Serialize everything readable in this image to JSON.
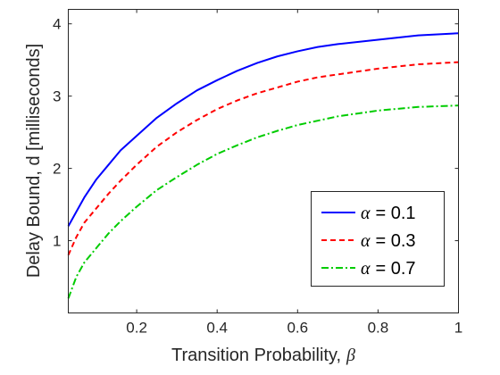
{
  "chart_data": {
    "type": "line",
    "xlabel": "Transition Probability,",
    "xlabel_symbol": "β",
    "ylabel": "Delay Bound, d [milliseconds]",
    "xlim": [
      0.03,
      1.0
    ],
    "ylim": [
      0.0,
      4.2
    ],
    "x_ticks": [
      0.2,
      0.4,
      0.6,
      0.8,
      1
    ],
    "x_tick_labels": [
      "0.2",
      "0.4",
      "0.6",
      "0.8",
      "1"
    ],
    "y_ticks": [
      1,
      2,
      3,
      4
    ],
    "y_tick_labels": [
      "1",
      "2",
      "3",
      "4"
    ],
    "grid": false,
    "legend_position": "lower-right",
    "series": [
      {
        "name": "α = 0.1",
        "symbol": "α",
        "label_rest": "= 0.1",
        "color": "#0000ff",
        "style": "solid",
        "x": [
          0.03,
          0.05,
          0.07,
          0.1,
          0.13,
          0.16,
          0.2,
          0.25,
          0.3,
          0.35,
          0.4,
          0.45,
          0.5,
          0.55,
          0.6,
          0.65,
          0.7,
          0.8,
          0.9,
          1.0
        ],
        "y": [
          1.2,
          1.4,
          1.6,
          1.85,
          2.05,
          2.25,
          2.45,
          2.7,
          2.9,
          3.08,
          3.22,
          3.35,
          3.46,
          3.55,
          3.62,
          3.68,
          3.72,
          3.78,
          3.84,
          3.87
        ]
      },
      {
        "name": "α = 0.3",
        "symbol": "α",
        "label_rest": "= 0.3",
        "color": "#ff0000",
        "style": "dashed",
        "x": [
          0.03,
          0.05,
          0.07,
          0.1,
          0.13,
          0.16,
          0.2,
          0.25,
          0.3,
          0.35,
          0.4,
          0.45,
          0.5,
          0.55,
          0.6,
          0.65,
          0.7,
          0.8,
          0.9,
          1.0
        ],
        "y": [
          0.8,
          1.05,
          1.25,
          1.45,
          1.65,
          1.83,
          2.05,
          2.3,
          2.5,
          2.67,
          2.82,
          2.94,
          3.04,
          3.12,
          3.2,
          3.26,
          3.3,
          3.38,
          3.44,
          3.47
        ]
      },
      {
        "name": "α = 0.7",
        "symbol": "α",
        "label_rest": "= 0.7",
        "color": "#00cc00",
        "style": "dashdot",
        "x": [
          0.03,
          0.05,
          0.07,
          0.1,
          0.13,
          0.16,
          0.2,
          0.25,
          0.3,
          0.35,
          0.4,
          0.45,
          0.5,
          0.55,
          0.6,
          0.65,
          0.7,
          0.8,
          0.9,
          1.0
        ],
        "y": [
          0.2,
          0.5,
          0.7,
          0.9,
          1.1,
          1.27,
          1.47,
          1.7,
          1.88,
          2.05,
          2.2,
          2.32,
          2.43,
          2.52,
          2.6,
          2.66,
          2.72,
          2.8,
          2.85,
          2.87
        ]
      }
    ]
  }
}
